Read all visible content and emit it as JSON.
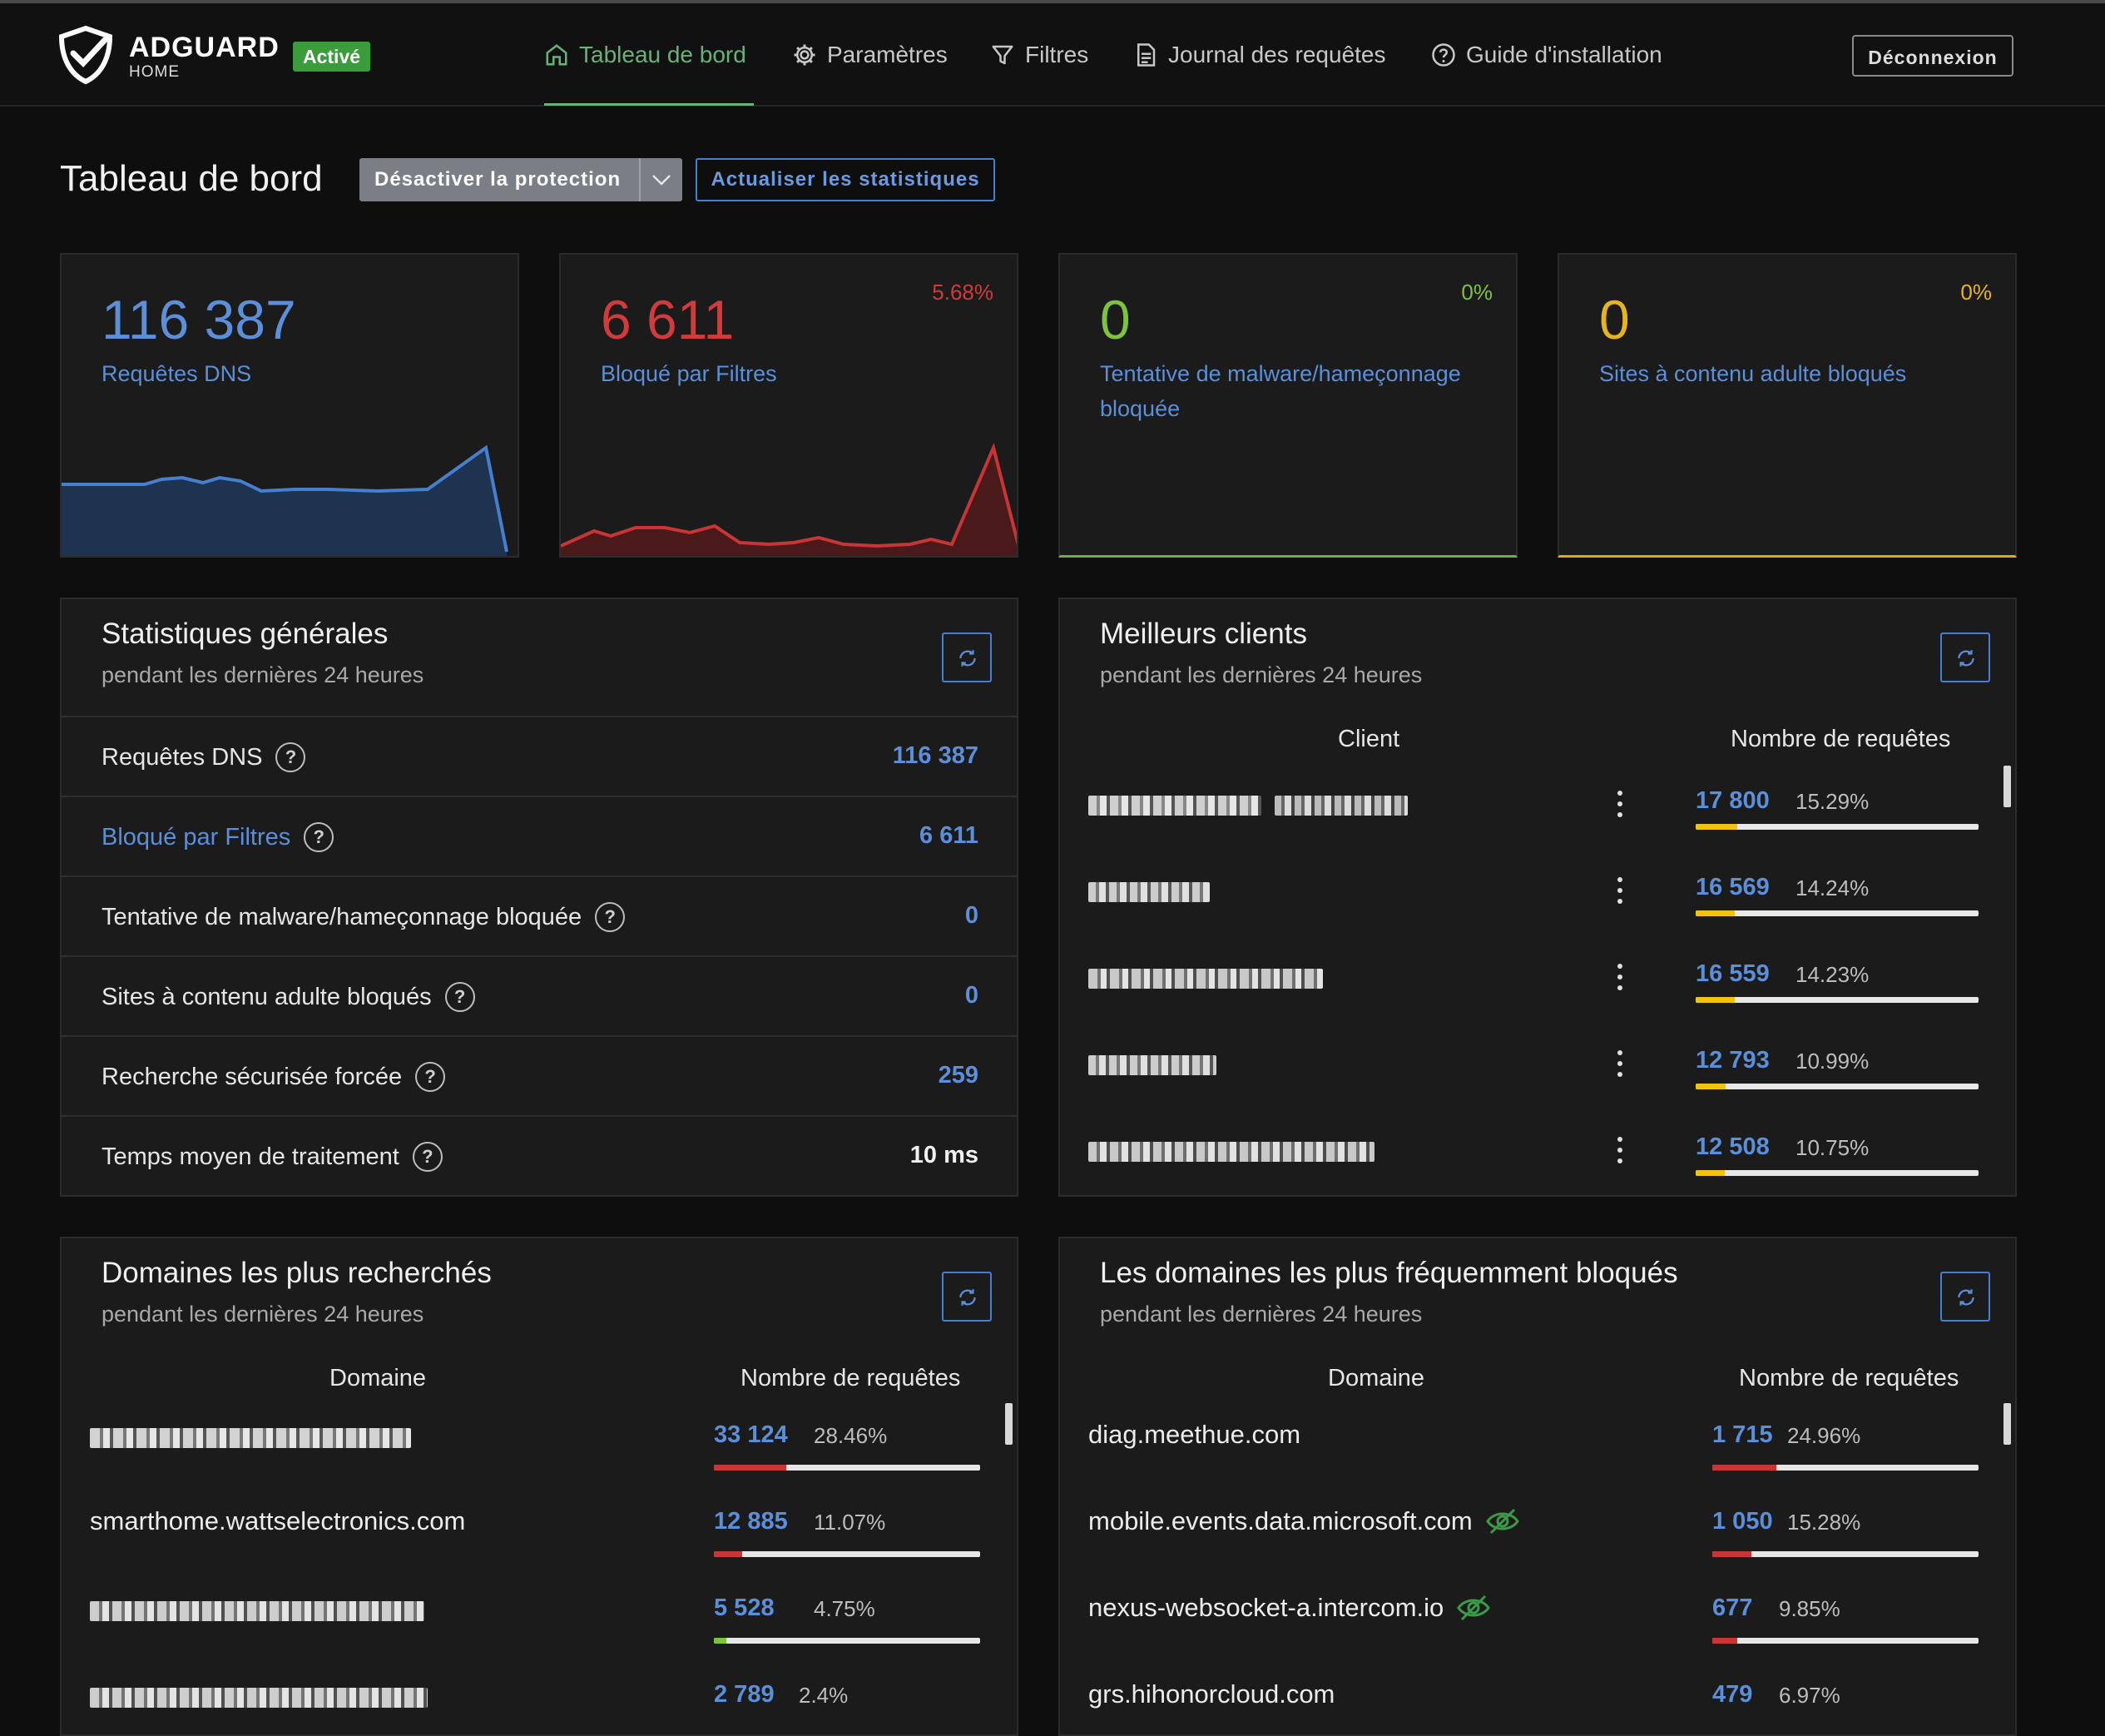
{
  "header": {
    "logo_title": "ADGUARD",
    "logo_sub": "HOME",
    "status_badge": "Activé",
    "nav": [
      {
        "label": "Tableau de bord",
        "icon": "home-icon",
        "active": true
      },
      {
        "label": "Paramètres",
        "icon": "gear-icon",
        "active": false
      },
      {
        "label": "Filtres",
        "icon": "filter-icon",
        "active": false
      },
      {
        "label": "Journal des requêtes",
        "icon": "document-icon",
        "active": false
      },
      {
        "label": "Guide d'installation",
        "icon": "help-circle-icon",
        "active": false
      }
    ],
    "logout_label": "Déconnexion"
  },
  "page": {
    "title": "Tableau de bord",
    "disable_protection_label": "Désactiver la protection",
    "refresh_stats_label": "Actualiser les statistiques"
  },
  "colors": {
    "accent_green": "#67b279",
    "blue": "#5b8fd9",
    "red": "#c93434",
    "yellow": "#f1c40f",
    "lime": "#7dc33b"
  },
  "stats": [
    {
      "value": "116 387",
      "label": "Requêtes DNS",
      "percent": "",
      "color": "#5b8fd9"
    },
    {
      "value": "6 611",
      "label": "Bloqué par Filtres",
      "percent": "5.68%",
      "color": "#c93434"
    },
    {
      "value": "0",
      "label": "Tentative de malware/hameçonnage bloquée",
      "percent": "0%",
      "color": "#7dc33b"
    },
    {
      "value": "0",
      "label": "Sites à contenu adulte bloqués",
      "percent": "0%",
      "color": "#e8b41b"
    }
  ],
  "general_stats": {
    "title": "Statistiques générales",
    "subtitle": "pendant les dernières 24 heures",
    "rows": [
      {
        "label": "Requêtes DNS",
        "value": "116 387"
      },
      {
        "label": "Bloqué par Filtres",
        "value": "6 611"
      },
      {
        "label": "Tentative de malware/hameçonnage bloquée",
        "value": "0"
      },
      {
        "label": "Sites à contenu adulte bloqués",
        "value": "0"
      },
      {
        "label": "Recherche sécurisée forcée",
        "value": "259"
      },
      {
        "label": "Temps moyen de traitement",
        "value": "10 ms"
      }
    ]
  },
  "top_clients": {
    "title": "Meilleurs clients",
    "subtitle": "pendant les dernières 24 heures",
    "col_client": "Client",
    "col_requests": "Nombre de requêtes",
    "rows": [
      {
        "count": "17 800",
        "percent": "15.29%",
        "fraction": 0.1529
      },
      {
        "count": "16 569",
        "percent": "14.24%",
        "fraction": 0.1424
      },
      {
        "count": "16 559",
        "percent": "14.23%",
        "fraction": 0.1423
      },
      {
        "count": "12 793",
        "percent": "10.99%",
        "fraction": 0.1099
      },
      {
        "count": "12 508",
        "percent": "10.75%",
        "fraction": 0.1075
      }
    ]
  },
  "top_queried": {
    "title": "Domaines les plus recherchés",
    "subtitle": "pendant les dernières 24 heures",
    "col_domain": "Domaine",
    "col_requests": "Nombre de requêtes",
    "rows": [
      {
        "domain": "",
        "count": "33 124",
        "percent": "28.46%",
        "fraction": 0.2846
      },
      {
        "domain": "smarthome.wattselectronics.com",
        "count": "12 885",
        "percent": "11.07%",
        "fraction": 0.1107
      },
      {
        "domain": "",
        "count": "5 528",
        "percent": "4.75%",
        "fraction": 0.0475
      },
      {
        "domain": "",
        "count": "2 789",
        "percent": "2.4%",
        "fraction": 0.024
      }
    ]
  },
  "top_blocked": {
    "title": "Les domaines les plus fréquemment bloqués",
    "subtitle": "pendant les dernières 24 heures",
    "col_domain": "Domaine",
    "col_requests": "Nombre de requêtes",
    "rows": [
      {
        "domain": "diag.meethue.com",
        "count": "1 715",
        "percent": "24.96%",
        "fraction": 0.2496,
        "tracker": false
      },
      {
        "domain": "mobile.events.data.microsoft.com",
        "count": "1 050",
        "percent": "15.28%",
        "fraction": 0.1528,
        "tracker": true
      },
      {
        "domain": "nexus-websocket-a.intercom.io",
        "count": "677",
        "percent": "9.85%",
        "fraction": 0.0985,
        "tracker": true
      },
      {
        "domain": "grs.hihonorcloud.com",
        "count": "479",
        "percent": "6.97%",
        "fraction": 0.0697,
        "tracker": false
      }
    ]
  }
}
